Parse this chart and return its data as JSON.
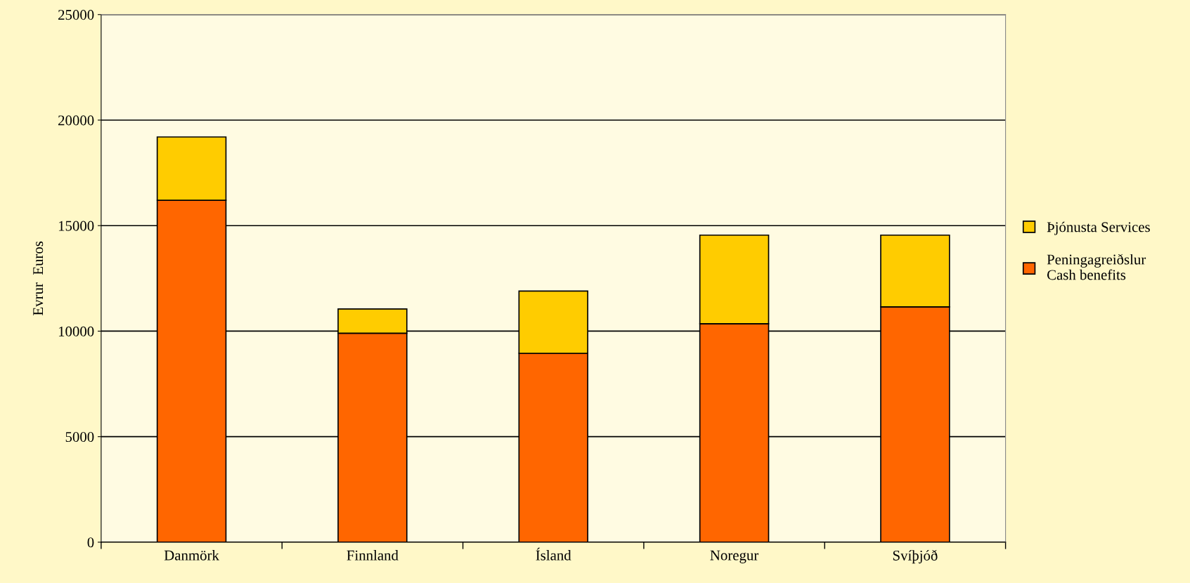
{
  "chart_data": {
    "type": "bar",
    "stacked": true,
    "ylabel": "Evrur  Euros",
    "categories": [
      "Danmörk",
      "Finnland",
      "Ísland",
      "Noregur",
      "Svíþjóð"
    ],
    "series": [
      {
        "name": "Peningagreiðslur\nCash benefits",
        "color": "#ff6600",
        "values": [
          16200,
          9900,
          8950,
          10350,
          11150
        ]
      },
      {
        "name": "Þjónusta Services",
        "color": "#ffcc00",
        "values": [
          3000,
          1150,
          2950,
          4200,
          3400
        ]
      }
    ],
    "ylim": [
      0,
      25000
    ],
    "yticks": [
      0,
      5000,
      10000,
      15000,
      20000,
      25000
    ],
    "grid": "y",
    "legend": "right"
  }
}
